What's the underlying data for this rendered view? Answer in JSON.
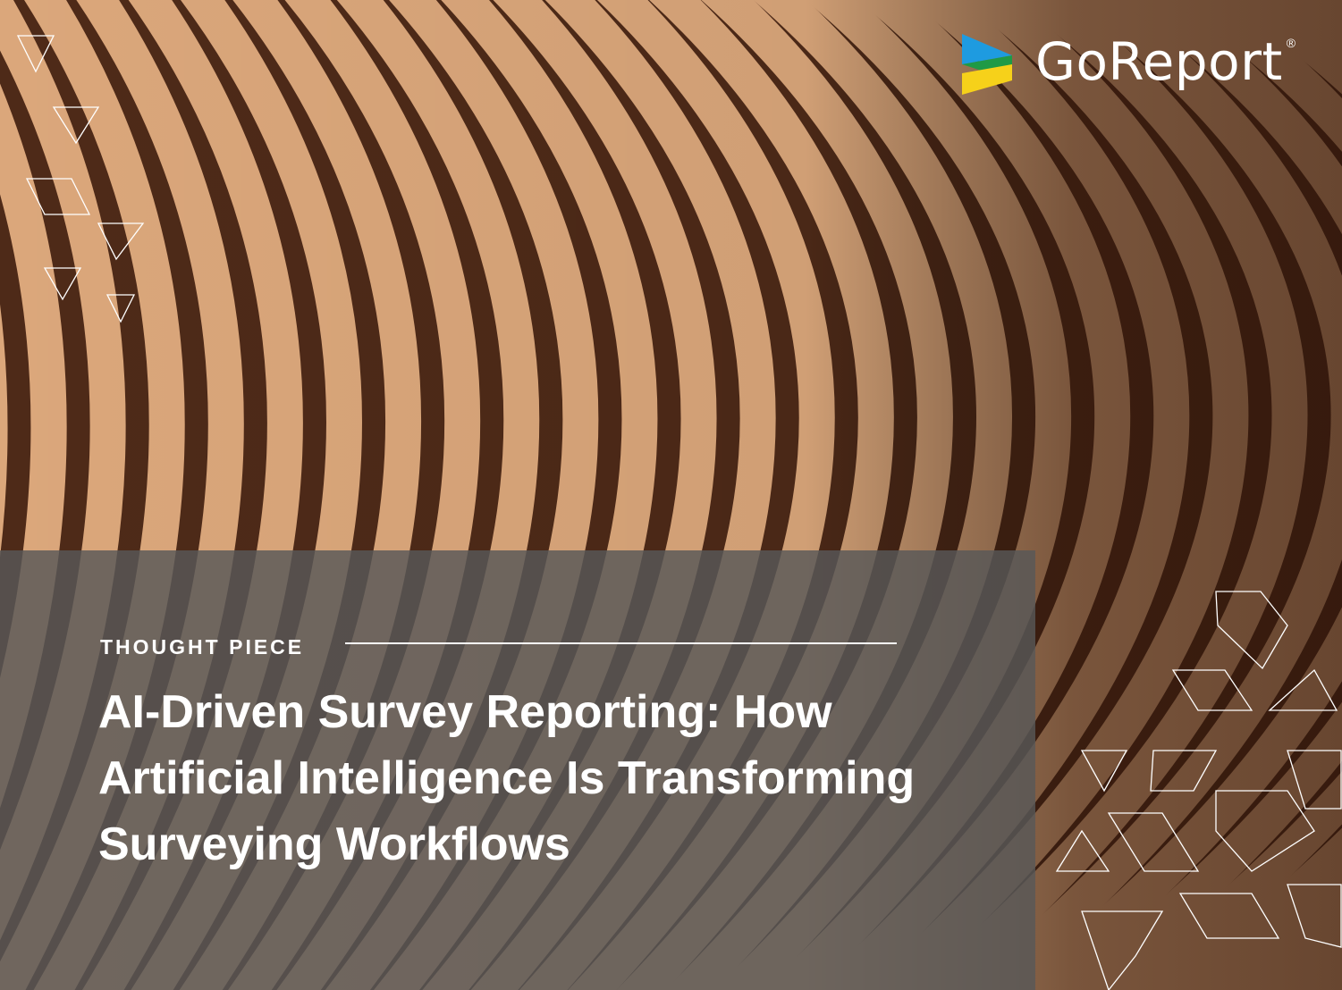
{
  "brand": {
    "name": "GoReport",
    "registered_mark": "®",
    "logo_colors": [
      "#1e9be0",
      "#1f9a46",
      "#f6d11a"
    ]
  },
  "cover": {
    "kicker": "THOUGHT PIECE",
    "title": "AI-Driven Survey Reporting: How Artificial Intelligence Is Transforming Surveying Workflows"
  },
  "colors": {
    "wood_light": "#dba77b",
    "wood_shadow": "#4e2a18",
    "panel": "#585858",
    "text": "#ffffff"
  }
}
